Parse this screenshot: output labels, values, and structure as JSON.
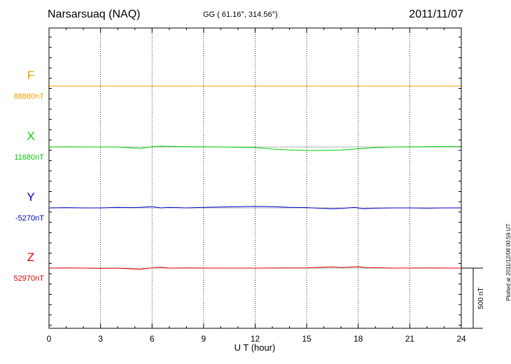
{
  "header": {
    "station": "Narsarsuaq (NAQ)",
    "coords": "GG ( 61.16°, 314.56°)",
    "date": "2011/11/07"
  },
  "footer": {
    "plotted": "Plotted at 2011/12/08 00:59 UT"
  },
  "chart_data": {
    "type": "line",
    "xlabel": "U T (hour)",
    "xlim": [
      0,
      24
    ],
    "xticks": [
      0,
      3,
      6,
      9,
      12,
      15,
      18,
      21,
      24
    ],
    "xgrid": true,
    "scale_bar_label": "500 nT",
    "scale_bar_nT": 500,
    "series": [
      {
        "name": "F",
        "baseline_label": "88880nT",
        "baseline_nT": 88880,
        "color": "#f0a000",
        "x": [
          0,
          2,
          4,
          6,
          8,
          10,
          12,
          14,
          16,
          18,
          20,
          22,
          24
        ],
        "y": [
          88880,
          88880,
          88880,
          88880,
          88880,
          88880,
          88880,
          88880,
          88880,
          88880,
          88880,
          88880,
          88880
        ]
      },
      {
        "name": "X",
        "baseline_label": "11680nT",
        "baseline_nT": 11680,
        "color": "#00d000",
        "x": [
          0,
          1,
          2,
          3,
          4,
          4.5,
          5.3,
          6,
          6.5,
          8,
          10,
          12,
          13,
          14,
          15,
          16,
          17,
          18,
          19,
          20,
          22,
          24
        ],
        "y": [
          11680,
          11681,
          11680,
          11680,
          11680,
          11676,
          11670,
          11682,
          11685,
          11682,
          11680,
          11676,
          11666,
          11660,
          11656,
          11656,
          11660,
          11668,
          11676,
          11680,
          11682,
          11684
        ]
      },
      {
        "name": "Y",
        "baseline_label": "-5270nT",
        "baseline_nT": -5270,
        "color": "#0000cc",
        "x": [
          0,
          1,
          2,
          3,
          4,
          5,
          6,
          6.5,
          7,
          8,
          9,
          10,
          11,
          12,
          13,
          14,
          15,
          16,
          16.5,
          17,
          17.8,
          18.3,
          19,
          20,
          21,
          22,
          23,
          24
        ],
        "y": [
          -5270,
          -5268,
          -5270,
          -5270,
          -5266,
          -5268,
          -5262,
          -5270,
          -5266,
          -5270,
          -5266,
          -5264,
          -5262,
          -5260,
          -5262,
          -5266,
          -5268,
          -5274,
          -5276,
          -5274,
          -5266,
          -5276,
          -5272,
          -5270,
          -5270,
          -5272,
          -5270,
          -5270
        ]
      },
      {
        "name": "Z",
        "baseline_label": "52970nT",
        "baseline_nT": 52970,
        "color": "#dd0000",
        "x": [
          0,
          1,
          2,
          3,
          4,
          4.5,
          5.3,
          6,
          6.5,
          7,
          8,
          10,
          12,
          14,
          15,
          16,
          16.5,
          17,
          18,
          18.5,
          19,
          20,
          22,
          24
        ],
        "y": [
          52970,
          52971,
          52970,
          52968,
          52970,
          52966,
          52962,
          52972,
          52976,
          52970,
          52971,
          52970,
          52970,
          52971,
          52972,
          52976,
          52978,
          52974,
          52980,
          52972,
          52973,
          52970,
          52971,
          52970
        ]
      }
    ]
  }
}
